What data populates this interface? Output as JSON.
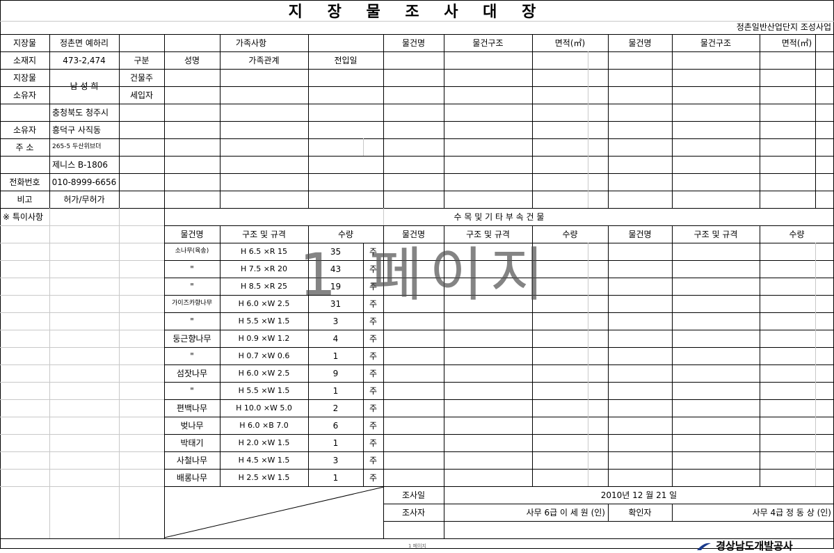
{
  "title": "지 장 물 조 사 대 장",
  "project": "정촌일반산업단지 조성사업",
  "watermark": "1 페이지",
  "info": {
    "district_label": "지장물",
    "district_value": "정촌면 예하리",
    "location_label": "소재지",
    "location_value": "473-2,474",
    "owner_label_1": "지장물",
    "owner_label_2": "소유자",
    "owner_value": "남 성 희",
    "addr_label_1": "소유자",
    "addr_label_2": "주  소",
    "addr_line_1": "충청북도 청주시",
    "addr_line_2": "흥덕구 사직동",
    "addr_line_3": "265-5 두산위브더",
    "addr_line_4": "제니스 B-1806",
    "phone_label": "전화번호",
    "phone_value": "010-8999-6656",
    "remark_label": "비고",
    "remark_value": "허가/무허가"
  },
  "family": {
    "header": "가족사항",
    "col_type": "구분",
    "col_name": "성명",
    "col_relation": "가족관계",
    "col_date": "전입일",
    "row_owner": "건물주",
    "row_tenant": "세입자"
  },
  "building_headers": [
    "물건명",
    "물건구조",
    "면적(㎡)",
    "물건명",
    "물건구조",
    "면적(㎡)"
  ],
  "special_label": "※ 특이사항",
  "trees": {
    "header": "수 목 및 기 타 부 속 건 물",
    "columns": [
      "물건명",
      "구조 및 규격",
      "수량",
      "물건명",
      "구조 및 규격",
      "수량",
      "물건명",
      "구조 및 규격",
      "수량"
    ],
    "rows": [
      {
        "name": "소나무(육송)",
        "spec": "H 6.5 ×R 15",
        "qty": "35",
        "unit": "주"
      },
      {
        "name": "\"",
        "spec": "H 7.5 ×R 20",
        "qty": "43",
        "unit": "주"
      },
      {
        "name": "\"",
        "spec": "H 8.5 ×R 25",
        "qty": "19",
        "unit": "주"
      },
      {
        "name": "가이즈카향나무",
        "spec": "H 6.0 ×W 2.5",
        "qty": "31",
        "unit": "주"
      },
      {
        "name": "\"",
        "spec": "H 5.5 ×W 1.5",
        "qty": "3",
        "unit": "주"
      },
      {
        "name": "둥근향나무",
        "spec": "H 0.9 ×W 1.2",
        "qty": "4",
        "unit": "주"
      },
      {
        "name": "\"",
        "spec": "H 0.7 ×W 0.6",
        "qty": "1",
        "unit": "주"
      },
      {
        "name": "섬잣나무",
        "spec": "H 6.0 ×W 2.5",
        "qty": "9",
        "unit": "주"
      },
      {
        "name": "\"",
        "spec": "H 5.5 ×W 1.5",
        "qty": "1",
        "unit": "주"
      },
      {
        "name": "편백나무",
        "spec": "H 10.0 ×W 5.0",
        "qty": "2",
        "unit": "주"
      },
      {
        "name": "벚나무",
        "spec": "H 6.0 ×B 7.0",
        "qty": "6",
        "unit": "주"
      },
      {
        "name": "박태기",
        "spec": "H 2.0 ×W 1.5",
        "qty": "1",
        "unit": "주"
      },
      {
        "name": "사철나무",
        "spec": "H 4.5 ×W 1.5",
        "qty": "3",
        "unit": "주"
      },
      {
        "name": "배롱나무",
        "spec": "H 2.5 ×W 1.5",
        "qty": "1",
        "unit": "주"
      }
    ]
  },
  "survey": {
    "date_label": "조사일",
    "date_value": "2010년    12 월   21  일",
    "surveyor_label": "조사자",
    "surveyor_value": "사무 6급  이 세 원 (인)",
    "checker_label": "확인자",
    "checker_value": "사무 4급 정 동 상 (인)"
  },
  "footer": {
    "company": "경상남도개발공사",
    "page_note": "1 페이지"
  }
}
